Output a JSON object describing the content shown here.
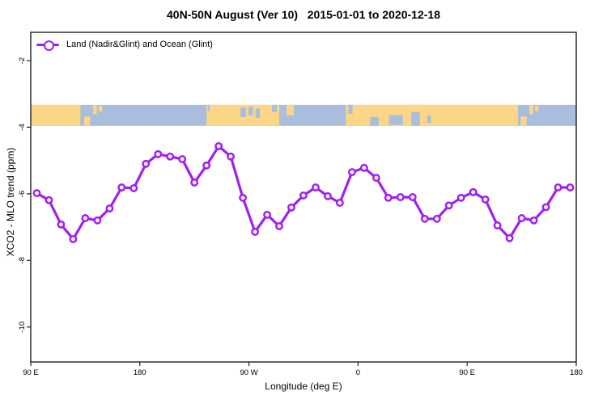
{
  "chart_data": {
    "type": "line",
    "title": "40N-50N August (Ver 10)   2015-01-01 to 2020-12-18",
    "xlabel": "Longitude (deg E)",
    "ylabel": "XCO2 - MLO trend (ppm)",
    "legend": {
      "position": "top-left",
      "entries": [
        "Land (Nadir&Glint) and Ocean (Glint)"
      ]
    },
    "xlim": [
      90,
      540
    ],
    "ylim": [
      -11.05,
      -1.15
    ],
    "grid": false,
    "x_ticks": [
      {
        "value": 90,
        "label": "90 E"
      },
      {
        "value": 180,
        "label": "180"
      },
      {
        "value": 270,
        "label": "90 W"
      },
      {
        "value": 360,
        "label": "0"
      },
      {
        "value": 450,
        "label": "90 E"
      },
      {
        "value": 540,
        "label": "180"
      }
    ],
    "y_ticks": [
      {
        "value": -2,
        "label": "-2"
      },
      {
        "value": -4,
        "label": "-4"
      },
      {
        "value": -6,
        "label": "-6"
      },
      {
        "value": -8,
        "label": "-8"
      },
      {
        "value": -10,
        "label": "-10"
      }
    ],
    "series": [
      {
        "name": "Land (Nadir&Glint) and Ocean (Glint)",
        "color": "#A020F0",
        "marker": "open-circle",
        "x": [
          95,
          105,
          115,
          125,
          135,
          145,
          155,
          165,
          175,
          185,
          195,
          205,
          215,
          225,
          235,
          245,
          255,
          265,
          275,
          285,
          295,
          305,
          315,
          325,
          335,
          345,
          355,
          365,
          375,
          385,
          395,
          405,
          415,
          425,
          435,
          445,
          455,
          465,
          475,
          485,
          495,
          505,
          515,
          525,
          535
        ],
        "y": [
          -5.98,
          -6.19,
          -6.92,
          -7.36,
          -6.73,
          -6.8,
          -6.44,
          -5.81,
          -5.83,
          -5.1,
          -4.81,
          -4.88,
          -4.96,
          -5.66,
          -5.15,
          -4.57,
          -4.88,
          -6.12,
          -7.14,
          -6.63,
          -6.97,
          -6.41,
          -6.05,
          -5.81,
          -6.07,
          -6.27,
          -5.35,
          -5.22,
          -5.52,
          -6.12,
          -6.1,
          -6.1,
          -6.75,
          -6.75,
          -6.35,
          -6.12,
          -5.95,
          -6.17,
          -6.95,
          -7.33,
          -6.73,
          -6.8,
          -6.4,
          -5.81,
          -5.81
        ]
      }
    ],
    "map_band": {
      "description": "40N-50N world coastline strip",
      "top_value": -3.33,
      "bottom_value": -3.96,
      "land_color": "#FBD687",
      "ocean_color": "#A8BEDC",
      "land_segments_deg": [
        [
          90,
          131
        ],
        [
          235,
          295
        ],
        [
          350,
          492
        ]
      ],
      "island_patches": [
        [
          134,
          139,
          0.55,
          1
        ],
        [
          141.5,
          144.5,
          0,
          0.45
        ],
        [
          146,
          149,
          0.05,
          0.3
        ],
        [
          301,
          307,
          0,
          0.5
        ],
        [
          494,
          499,
          0.55,
          1
        ],
        [
          501.5,
          504.5,
          0,
          0.45
        ],
        [
          506,
          509,
          0.05,
          0.3
        ]
      ],
      "water_patches": [
        [
          236,
          237.5,
          0,
          0.3
        ],
        [
          263,
          267.5,
          0.12,
          0.58
        ],
        [
          269.5,
          273.5,
          0.08,
          0.5
        ],
        [
          275.5,
          279,
          0.18,
          0.62
        ],
        [
          289,
          293,
          0,
          0.35
        ],
        [
          352,
          355.5,
          0,
          0.42
        ],
        [
          370,
          377,
          0.58,
          1
        ],
        [
          385.5,
          397,
          0.48,
          0.95
        ],
        [
          404,
          411,
          0.35,
          1
        ],
        [
          417,
          420,
          0.5,
          0.85
        ]
      ]
    }
  },
  "colors": {
    "axis": "#1f1f1f",
    "background": "#ffffff",
    "accent": "#A020F0"
  }
}
